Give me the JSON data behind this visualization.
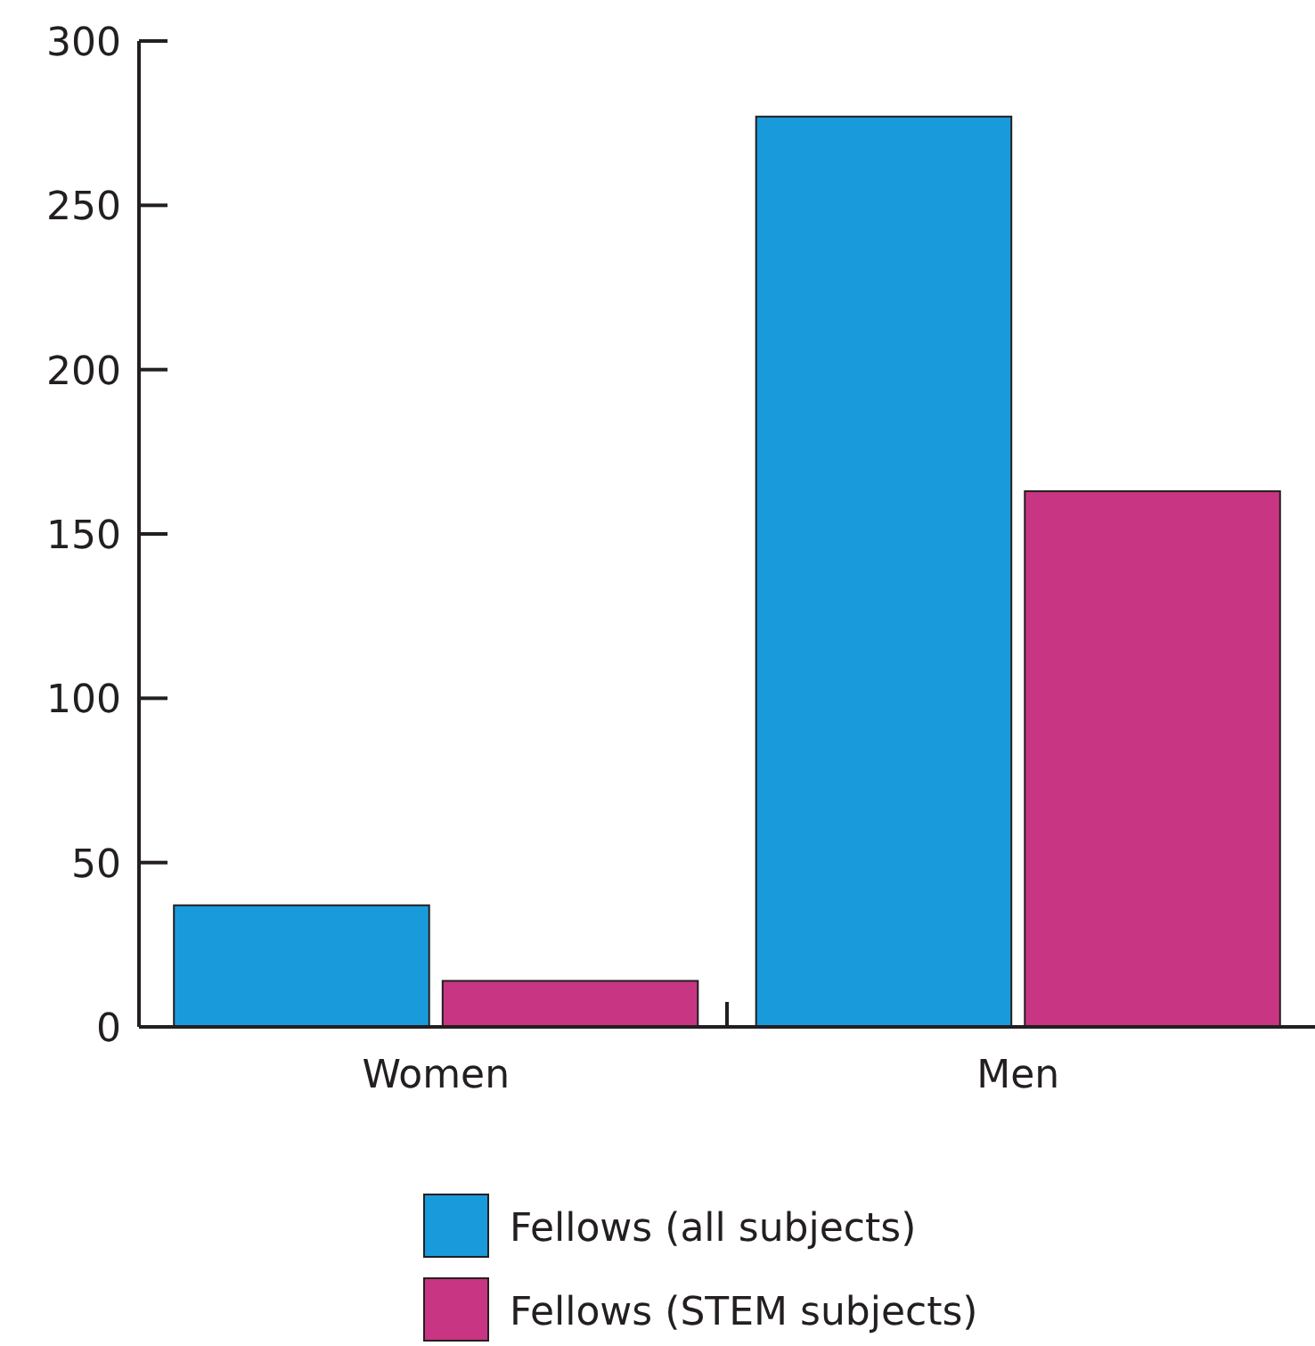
{
  "chart_data": {
    "type": "bar",
    "categories": [
      "Women",
      "Men"
    ],
    "series": [
      {
        "name": "Fellows (all subjects)",
        "color": "#199bdb",
        "values": [
          37,
          277
        ]
      },
      {
        "name": "Fellows (STEM subjects)",
        "color": "#c83583",
        "values": [
          14,
          163
        ]
      }
    ],
    "ylim": [
      0,
      300
    ],
    "yticks": [
      0,
      50,
      100,
      150,
      200,
      250,
      300
    ],
    "grid": false,
    "legend": "bottom"
  }
}
